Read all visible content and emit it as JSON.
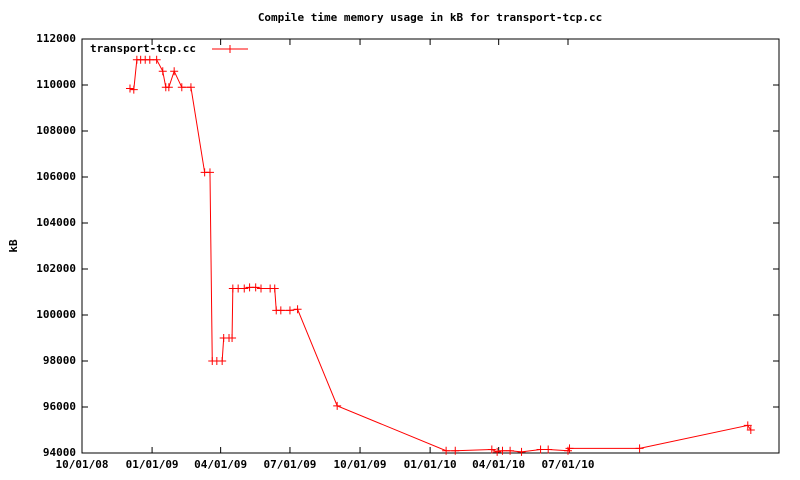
{
  "chart_data": {
    "type": "line",
    "title": "Compile time memory usage in kB for transport-tcp.cc",
    "ylabel": "kB",
    "legend": "top-left",
    "grid": false,
    "x": [
      "2008-12-03",
      "2008-12-08",
      "2008-12-12",
      "2008-12-17",
      "2008-12-23",
      "2008-12-29",
      "2009-01-07",
      "2009-01-15",
      "2009-01-19",
      "2009-01-23",
      "2009-01-30",
      "2009-02-09",
      "2009-02-21",
      "2009-03-11",
      "2009-03-18",
      "2009-03-21",
      "2009-03-27",
      "2009-04-03",
      "2009-04-05",
      "2009-04-12",
      "2009-04-16",
      "2009-04-17",
      "2009-04-24",
      "2009-05-02",
      "2009-05-09",
      "2009-05-17",
      "2009-05-24",
      "2009-06-05",
      "2009-06-11",
      "2009-06-13",
      "2009-06-19",
      "2009-07-01",
      "2009-07-11",
      "2009-09-01",
      "2010-01-22",
      "2010-02-03",
      "2010-03-23",
      "2010-03-30",
      "2010-04-06",
      "2010-04-16",
      "2010-05-01",
      "2010-05-26",
      "2010-06-05",
      "2010-07-01",
      "2010-07-03",
      "2010-10-03",
      "2011-02-22",
      "2011-02-26"
    ],
    "series": [
      {
        "name": "transport-tcp.cc",
        "color": "#ff0000",
        "values": [
          109850,
          109800,
          111100,
          111100,
          111100,
          111100,
          111100,
          110600,
          109900,
          109900,
          110600,
          109900,
          109900,
          106200,
          106200,
          98000,
          98000,
          98000,
          99000,
          99000,
          99000,
          101150,
          101150,
          101150,
          101200,
          101200,
          101150,
          101150,
          101150,
          100200,
          100200,
          100200,
          100250,
          96050,
          94100,
          94100,
          94150,
          94050,
          94100,
          94100,
          94050,
          94150,
          94150,
          94100,
          94200,
          94200,
          95200,
          95000
        ]
      }
    ],
    "xlim": [
      "2008-10-01",
      "2011-04-04"
    ],
    "xticks": [
      {
        "value": "2008-10-01",
        "label": "10/01/08"
      },
      {
        "value": "2009-01-01",
        "label": "01/01/09"
      },
      {
        "value": "2009-04-01",
        "label": "04/01/09"
      },
      {
        "value": "2009-07-01",
        "label": "07/01/09"
      },
      {
        "value": "2009-10-01",
        "label": "10/01/09"
      },
      {
        "value": "2010-01-01",
        "label": "01/01/10"
      },
      {
        "value": "2010-04-01",
        "label": "04/01/10"
      },
      {
        "value": "2010-07-01",
        "label": "07/01/10"
      }
    ],
    "ylim": [
      94000,
      112000
    ],
    "yticks": [
      94000,
      96000,
      98000,
      100000,
      102000,
      104000,
      106000,
      108000,
      110000,
      112000
    ]
  }
}
